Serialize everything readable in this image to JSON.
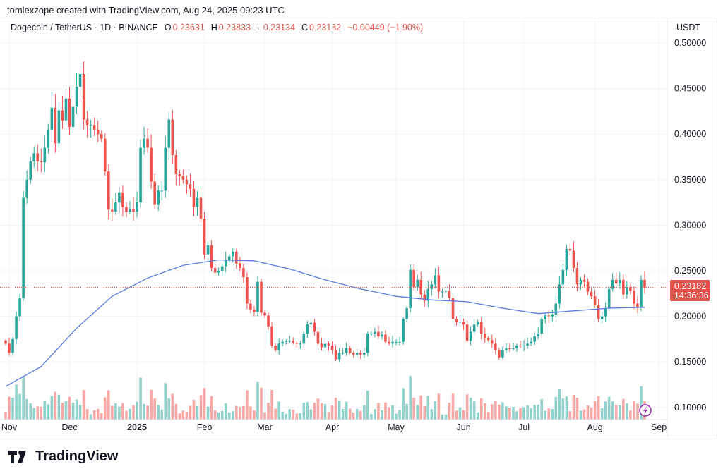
{
  "header": {
    "credit": "tomlexzope created with TradingView.com, Aug 24, 2025 09:23 UTC",
    "symbol": "Dogecoin / TetherUS · 1D · BINANCE",
    "o_label": "O",
    "o": "0.23631",
    "h_label": "H",
    "h": "0.23833",
    "l_label": "L",
    "l": "0.23134",
    "c_label": "C",
    "c": "0.23182",
    "change": "−0.00449 (−1.90%)"
  },
  "axis": {
    "currency": "USDT",
    "price_label": "0.23182",
    "countdown": "14:36:36"
  },
  "brand": {
    "name": "TradingView",
    "logo_text": "TV"
  },
  "colors": {
    "up": "#26a69a",
    "down": "#ef5350",
    "ma": "#5b7be0",
    "price_line": "#e2504a",
    "alert": "#9c27b0"
  },
  "chart_data": {
    "type": "candlestick",
    "title": "Dogecoin / TetherUS · 1D · BINANCE",
    "ylim": [
      0.09,
      0.51
    ],
    "yticks": [
      0.1,
      0.15,
      0.2,
      0.25,
      0.3,
      0.35,
      0.4,
      0.45,
      0.5
    ],
    "ytick_labels": [
      "0.10000",
      "0.15000",
      "0.20000",
      "0.25000",
      "0.30000",
      "0.35000",
      "0.40000",
      "0.45000",
      "0.50000"
    ],
    "xticks": [
      {
        "label": "Nov",
        "index": 1
      },
      {
        "label": "Dec",
        "index": 18
      },
      {
        "label": "2025",
        "index": 37,
        "bold": true
      },
      {
        "label": "Feb",
        "index": 56
      },
      {
        "label": "Mar",
        "index": 73
      },
      {
        "label": "Apr",
        "index": 92
      },
      {
        "label": "May",
        "index": 110
      },
      {
        "label": "Jun",
        "index": 129
      },
      {
        "label": "Jul",
        "index": 146
      },
      {
        "label": "Aug",
        "index": 166
      },
      {
        "label": "Sep",
        "index": 184
      }
    ],
    "x_count": 186,
    "closes": [
      0.17,
      0.16,
      0.175,
      0.2,
      0.22,
      0.33,
      0.35,
      0.37,
      0.379,
      0.37,
      0.369,
      0.385,
      0.405,
      0.429,
      0.39,
      0.426,
      0.415,
      0.439,
      0.408,
      0.43,
      0.452,
      0.466,
      0.416,
      0.41,
      0.41,
      0.405,
      0.4,
      0.395,
      0.359,
      0.317,
      0.315,
      0.325,
      0.336,
      0.32,
      0.315,
      0.318,
      0.315,
      0.325,
      0.385,
      0.395,
      0.385,
      0.348,
      0.323,
      0.338,
      0.338,
      0.385,
      0.416,
      0.377,
      0.356,
      0.354,
      0.35,
      0.345,
      0.34,
      0.32,
      0.33,
      0.307,
      0.268,
      0.278,
      0.253,
      0.248,
      0.25,
      0.255,
      0.262,
      0.266,
      0.271,
      0.258,
      0.253,
      0.243,
      0.214,
      0.207,
      0.205,
      0.238,
      0.204,
      0.201,
      0.189,
      0.168,
      0.163,
      0.17,
      0.172,
      0.173,
      0.173,
      0.171,
      0.17,
      0.17,
      0.181,
      0.191,
      0.193,
      0.183,
      0.17,
      0.166,
      0.17,
      0.168,
      0.163,
      0.153,
      0.16,
      0.16,
      0.165,
      0.16,
      0.158,
      0.16,
      0.158,
      0.16,
      0.181,
      0.181,
      0.183,
      0.178,
      0.18,
      0.172,
      0.17,
      0.172,
      0.172,
      0.172,
      0.197,
      0.209,
      0.251,
      0.232,
      0.24,
      0.224,
      0.217,
      0.23,
      0.235,
      0.245,
      0.227,
      0.227,
      0.228,
      0.22,
      0.197,
      0.194,
      0.194,
      0.191,
      0.173,
      0.183,
      0.191,
      0.194,
      0.181,
      0.176,
      0.174,
      0.17,
      0.163,
      0.155,
      0.163,
      0.165,
      0.164,
      0.165,
      0.168,
      0.167,
      0.168,
      0.17,
      0.172,
      0.178,
      0.181,
      0.197,
      0.201,
      0.2,
      0.202,
      0.214,
      0.235,
      0.251,
      0.274,
      0.272,
      0.253,
      0.235,
      0.24,
      0.238,
      0.227,
      0.222,
      0.212,
      0.197,
      0.2,
      0.209,
      0.23,
      0.24,
      0.236,
      0.24,
      0.224,
      0.232,
      0.228,
      0.214,
      0.21,
      0.24,
      0.23182
    ],
    "ma_step": 10,
    "ma": [
      0.123,
      0.145,
      0.187,
      0.222,
      0.242,
      0.256,
      0.262,
      0.261,
      0.252,
      0.24,
      0.23,
      0.222,
      0.218,
      0.216,
      0.209,
      0.203,
      0.206,
      0.209,
      0.21
    ],
    "last_price": 0.23182
  }
}
